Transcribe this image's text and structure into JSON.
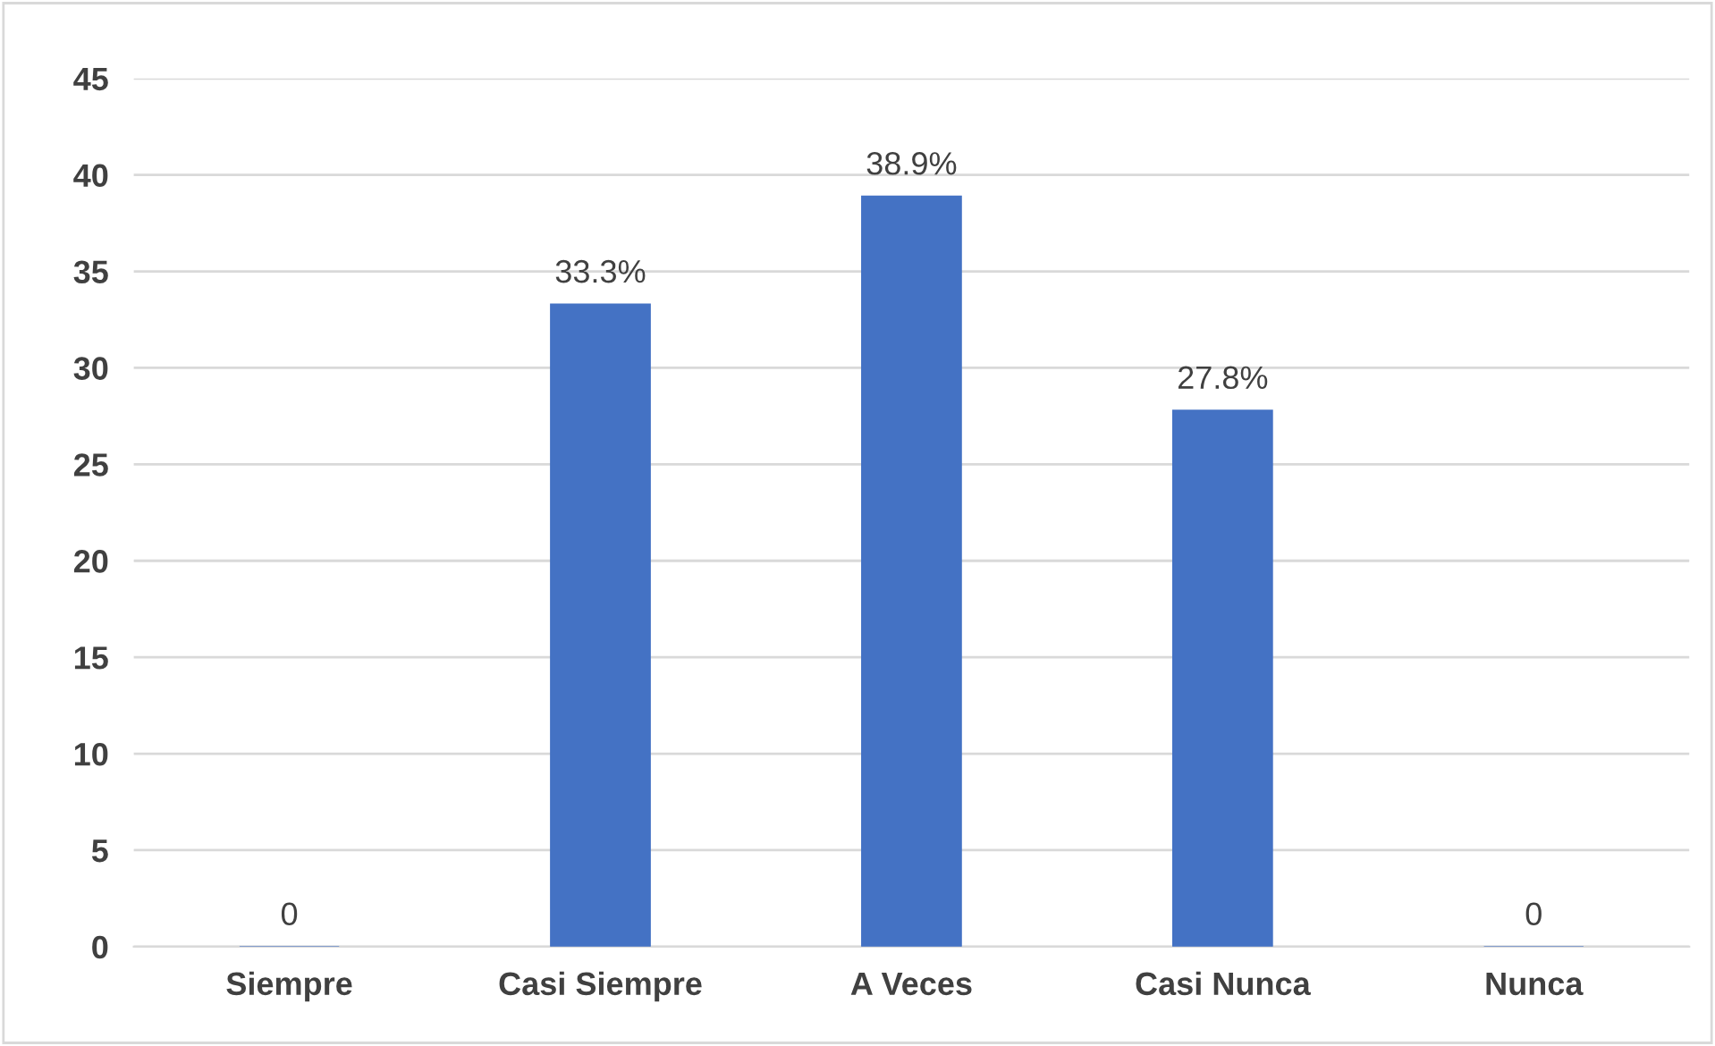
{
  "chart_data": {
    "type": "bar",
    "categories": [
      "Siempre",
      "Casi Siempre",
      "A Veces",
      "Casi Nunca",
      "Nunca"
    ],
    "values": [
      0,
      33.3,
      38.9,
      27.8,
      0
    ],
    "value_labels": [
      "0",
      "33.3%",
      "38.9%",
      "27.8%",
      "0"
    ],
    "color": "#4472c4",
    "ylim": [
      0,
      45
    ],
    "yticks": [
      0,
      5,
      10,
      15,
      20,
      25,
      30,
      35,
      40,
      45
    ],
    "grid": "y",
    "legend": false
  }
}
